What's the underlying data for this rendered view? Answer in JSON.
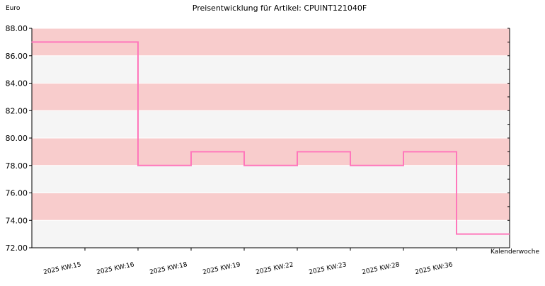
{
  "chart_data": {
    "type": "line",
    "title": "Preisentwicklung für Artikel: CPUINT121040F",
    "ylabel": "Euro",
    "xlabel": "Kalenderwoche",
    "ylim": [
      72,
      88
    ],
    "y_ticks": [
      "72.00",
      "74.00",
      "76.00",
      "78.00",
      "80.00",
      "82.00",
      "84.00",
      "86.00",
      "88.00"
    ],
    "categories": [
      "2025 KW:15",
      "2025 KW:16",
      "2025 KW:18",
      "2025 KW:19",
      "2025 KW:22",
      "2025 KW:23",
      "2025 KW:28",
      "2025 KW:36"
    ],
    "series": [
      {
        "values": [
          87,
          78,
          79,
          78,
          79,
          78,
          79,
          73
        ]
      }
    ],
    "line_style": "step",
    "grid": true,
    "colors": {
      "line": "#ff77bb",
      "band_light": "#f5f5f5",
      "band_dark": "#f8cccc",
      "grid": "#ffffff",
      "axis": "#000000"
    }
  }
}
